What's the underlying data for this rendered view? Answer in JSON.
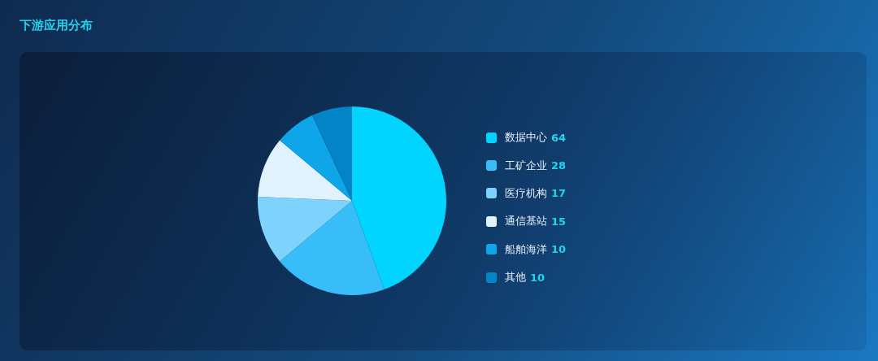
{
  "chart_data": {
    "type": "pie",
    "title": "下游应用分布",
    "categories": [
      "数据中心",
      "工矿企业",
      "医疗机构",
      "通信基站",
      "船舶海洋",
      "其他"
    ],
    "values": [
      64,
      28,
      17,
      15,
      10,
      10
    ],
    "colors": [
      "#00d4ff",
      "#38bdf8",
      "#7dd3fc",
      "#e0f2fe",
      "#0ea5e9",
      "#0284c7"
    ],
    "legend": "right",
    "data_labels": true
  }
}
